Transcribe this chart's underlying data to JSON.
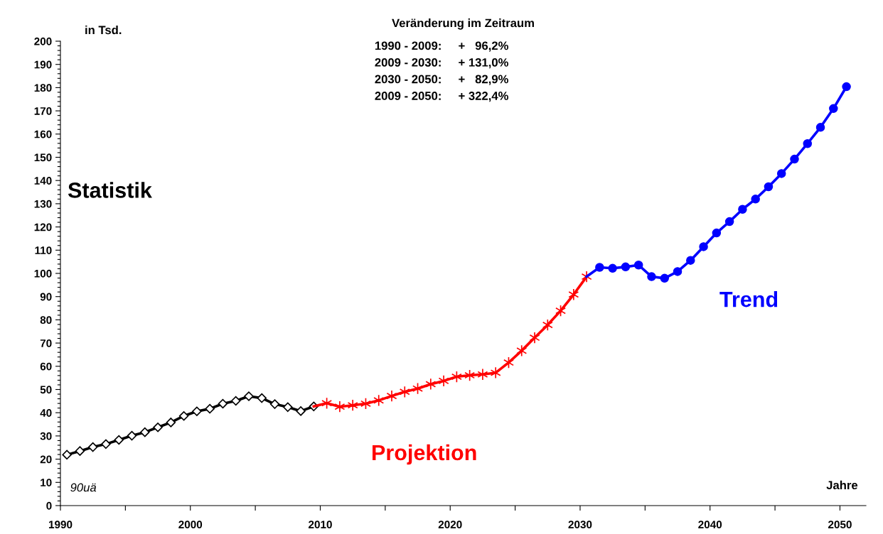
{
  "chart_data": {
    "type": "line",
    "ylabel": "in Tsd.",
    "xlabel": "Jahre",
    "annotations": [
      "Veränderung im Zeitraum",
      "1990 - 2009:     +   96,2%",
      "2009 - 2030:     + 131,0%",
      "2030 - 2050:     +   82,9%",
      "2009 - 2050:     + 322,4%",
      "90uä"
    ],
    "series": [
      {
        "name": "Statistik",
        "color": "#000000",
        "marker": "diamond",
        "x": [
          1990,
          1991,
          1992,
          1993,
          1994,
          1995,
          1996,
          1997,
          1998,
          1999,
          2000,
          2001,
          2002,
          2003,
          2004,
          2005,
          2006,
          2007,
          2008,
          2009
        ],
        "values": [
          21.9,
          23.5,
          25.2,
          26.5,
          28.3,
          30.1,
          31.6,
          33.7,
          35.8,
          38.6,
          40.6,
          41.7,
          43.9,
          45.1,
          47.1,
          46.3,
          43.7,
          42.4,
          40.7,
          42.7
        ]
      },
      {
        "name": "Projektion",
        "color": "#ff0000",
        "marker": "cross",
        "x": [
          2009,
          2010,
          2011,
          2012,
          2013,
          2014,
          2015,
          2016,
          2017,
          2018,
          2019,
          2020,
          2021,
          2022,
          2023,
          2024,
          2025,
          2026,
          2027,
          2028,
          2029,
          2030
        ],
        "values": [
          42.7,
          44.1,
          42.6,
          43.2,
          43.9,
          45.3,
          47.2,
          49.0,
          50.4,
          52.3,
          53.7,
          55.5,
          56.1,
          56.5,
          57.2,
          61.6,
          66.7,
          72.3,
          77.8,
          83.9,
          90.9,
          98.6
        ]
      },
      {
        "name": "Trend",
        "color": "#0000ff",
        "marker": "circle",
        "x": [
          2030,
          2031,
          2032,
          2033,
          2034,
          2035,
          2036,
          2037,
          2038,
          2039,
          2040,
          2041,
          2042,
          2043,
          2044,
          2045,
          2046,
          2047,
          2048,
          2049,
          2050
        ],
        "values": [
          98.6,
          102.6,
          102.2,
          102.8,
          103.6,
          98.6,
          97.9,
          100.8,
          105.6,
          111.5,
          117.4,
          122.3,
          127.6,
          132.0,
          137.3,
          143.0,
          149.2,
          155.9,
          162.9,
          171.0,
          180.4
        ]
      }
    ],
    "xlim": [
      1989.5,
      2051.5
    ],
    "xticks": [
      {
        "value": 1989.5,
        "label": "1990"
      },
      {
        "value": 1994.5,
        "label": null
      },
      {
        "value": 1999.5,
        "label": "2000"
      },
      {
        "value": 2004.5,
        "label": null
      },
      {
        "value": 2009.5,
        "label": "2010"
      },
      {
        "value": 2014.5,
        "label": null
      },
      {
        "value": 2019.5,
        "label": "2020"
      },
      {
        "value": 2024.5,
        "label": null
      },
      {
        "value": 2029.5,
        "label": "2030"
      },
      {
        "value": 2034.5,
        "label": null
      },
      {
        "value": 2039.5,
        "label": "2040"
      },
      {
        "value": 2044.5,
        "label": null
      },
      {
        "value": 2049.5,
        "label": "2050"
      }
    ],
    "ylim": [
      0,
      200
    ],
    "yticks": [
      0,
      10,
      20,
      30,
      40,
      50,
      60,
      70,
      80,
      90,
      100,
      110,
      120,
      130,
      140,
      150,
      160,
      170,
      180,
      190,
      200
    ],
    "grid": false,
    "legend": false,
    "line_style": "solid"
  }
}
